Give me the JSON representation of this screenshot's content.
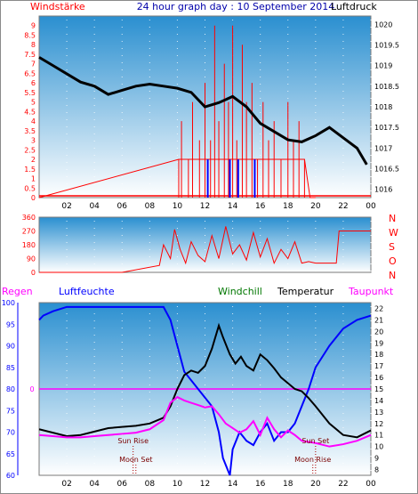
{
  "header": {
    "left": "Windstärke",
    "center": "24 hour graph day : 10 September 2014",
    "right": "Luftdruck"
  },
  "labels": {
    "regen": "Regen",
    "luftfeuchte": "Luftfeuchte",
    "windchill": "Windchill",
    "temperatur": "Temperatur",
    "taupunkt": "Taupunkt",
    "sunrise": "Sun Rise",
    "sunset": "Sun Set",
    "moonset": "Moon Set",
    "moonrise": "Moon Rise"
  },
  "colors": {
    "red": "#ff0000",
    "blue": "#0000ff",
    "green": "#007700",
    "magenta": "#ff00ff",
    "bg_top": "#2a8fd0",
    "bg_bottom": "#ffffff"
  },
  "chart_data": [
    {
      "type": "line",
      "title": "24 hour graph day : 10 September 2014",
      "x_ticks": [
        "02",
        "04",
        "06",
        "08",
        "10",
        "12",
        "14",
        "16",
        "18",
        "20",
        "22",
        "00"
      ],
      "y_left": {
        "label": "Windstärke",
        "ticks": [
          "0",
          "0.5",
          "1",
          "1.5",
          "2",
          "2.5",
          "3",
          "3.5",
          "4",
          "4.5",
          "5",
          "5.5",
          "6",
          "6.5",
          "7",
          "7.5",
          "8",
          "8.5",
          "9"
        ],
        "range": [
          0,
          9.5
        ]
      },
      "y_right": {
        "label": "Luftdruck",
        "ticks": [
          "1016",
          "1016.5",
          "1017",
          "1017.5",
          "1018",
          "1018.5",
          "1019",
          "1019.5",
          "1020"
        ],
        "range": [
          1015.8,
          1020.2
        ]
      },
      "series": [
        {
          "name": "Luftdruck",
          "color": "#000000",
          "x": [
            0,
            1,
            2,
            3,
            4,
            5,
            6,
            7,
            8,
            9,
            10,
            11,
            12,
            13,
            14,
            15,
            16,
            17,
            18,
            19,
            20,
            21,
            22,
            23,
            23.7
          ],
          "values": [
            1019.2,
            1019.0,
            1018.8,
            1018.6,
            1018.5,
            1018.3,
            1018.4,
            1018.5,
            1018.55,
            1018.5,
            1018.45,
            1018.35,
            1018.0,
            1018.1,
            1018.25,
            1018.0,
            1017.6,
            1017.4,
            1017.2,
            1017.15,
            1017.3,
            1017.5,
            1017.25,
            1017.0,
            1016.6
          ]
        },
        {
          "name": "Wind",
          "color": "#ff0000",
          "x": [
            0,
            10.1,
            10.3,
            10.8,
            11.1,
            11.6,
            12.0,
            12.4,
            12.7,
            13.0,
            13.4,
            13.7,
            14.0,
            14.3,
            14.7,
            15.0,
            15.4,
            15.8,
            16.2,
            16.6,
            17.0,
            17.5,
            18.0,
            18.4,
            18.8,
            19.2,
            19.6,
            20
          ],
          "values": [
            0,
            2,
            4,
            2,
            5,
            3,
            6,
            3,
            9,
            4,
            7,
            5,
            9,
            3,
            8,
            5,
            6,
            2,
            5,
            3,
            4,
            2,
            5,
            3,
            4,
            2,
            0,
            0
          ]
        },
        {
          "name": "Böen",
          "color": "#0000ff",
          "x": [
            12.2,
            12.2,
            13.8,
            13.8,
            14.4,
            14.4,
            15.6,
            15.6
          ],
          "values": [
            2,
            0,
            2,
            0,
            2,
            0,
            2,
            0
          ]
        }
      ]
    },
    {
      "type": "line",
      "y_left": {
        "ticks": [
          "0",
          "90",
          "180",
          "270",
          "360"
        ],
        "range": [
          0,
          360
        ]
      },
      "y_right": {
        "ticks": [
          "N",
          "W",
          "S",
          "O",
          "N"
        ]
      },
      "series": [
        {
          "name": "Windrichtung",
          "color": "#ff0000",
          "x": [
            0,
            2.2,
            4,
            6,
            8.7,
            9,
            9.5,
            9.8,
            10.2,
            10.6,
            11,
            11.5,
            12,
            12.5,
            13,
            13.5,
            14,
            14.5,
            15,
            15.5,
            16,
            16.5,
            17,
            17.5,
            18,
            18.5,
            19,
            19.5,
            20,
            21.5,
            21.7,
            23.5,
            24
          ],
          "values": [
            0,
            0,
            0,
            0,
            45,
            180,
            90,
            280,
            150,
            60,
            200,
            110,
            70,
            240,
            90,
            300,
            120,
            180,
            80,
            260,
            100,
            220,
            60,
            150,
            90,
            200,
            60,
            70,
            60,
            60,
            270,
            270,
            270
          ]
        }
      ]
    },
    {
      "type": "line",
      "y_left": {
        "label": "Luftfeuchte",
        "ticks": [
          "60",
          "65",
          "70",
          "75",
          "80",
          "85",
          "90",
          "95",
          "100"
        ],
        "range": [
          60,
          100
        ]
      },
      "y_right": {
        "label": "Temperatur",
        "ticks": [
          "8",
          "9",
          "10",
          "11",
          "12",
          "13",
          "14",
          "15",
          "16",
          "17",
          "18",
          "19",
          "20",
          "21",
          "22"
        ],
        "range": [
          7.5,
          22.5
        ]
      },
      "regen": {
        "label": "Regen",
        "ticks": [
          "0"
        ]
      },
      "events": {
        "sunrise": 6.8,
        "sunset": 20.0,
        "moonset": 7.0,
        "moonrise": 19.8
      },
      "series": [
        {
          "name": "Luftfeuchte",
          "color": "#0000ff",
          "x": [
            0,
            0.3,
            1,
            2,
            3,
            4,
            5,
            6,
            7,
            8,
            9,
            9.5,
            10,
            10.5,
            11,
            11.5,
            12,
            12.5,
            13,
            13.3,
            13.8,
            14,
            14.5,
            15,
            15.5,
            16,
            16.5,
            17,
            17.5,
            18,
            18.5,
            19,
            19.5,
            20,
            21,
            22,
            23,
            24
          ],
          "values": [
            96,
            97,
            98,
            99,
            99,
            99,
            99,
            99,
            99,
            99,
            99,
            96,
            90,
            84,
            82,
            80,
            78,
            76,
            70,
            64,
            60,
            66,
            70,
            68,
            67,
            70,
            72,
            68,
            70,
            70,
            72,
            76,
            80,
            85,
            90,
            94,
            96,
            97
          ]
        },
        {
          "name": "Temperatur",
          "color": "#000000",
          "x": [
            0,
            1,
            2,
            3,
            4,
            5,
            6,
            7,
            8,
            9,
            9.5,
            10,
            10.5,
            11,
            11.5,
            12,
            12.5,
            13,
            13.3,
            13.8,
            14.2,
            14.6,
            15,
            15.5,
            16,
            16.5,
            17,
            17.5,
            18,
            18.5,
            19,
            19.5,
            20,
            21,
            22,
            23,
            24
          ],
          "values": [
            11.5,
            11.2,
            10.9,
            11.0,
            11.3,
            11.6,
            11.7,
            11.8,
            12.0,
            12.5,
            13.5,
            15.0,
            16.2,
            16.6,
            16.4,
            17.0,
            18.5,
            20.5,
            19.5,
            18.0,
            17.2,
            17.8,
            17.0,
            16.6,
            18.0,
            17.5,
            16.8,
            16.0,
            15.5,
            15.0,
            14.8,
            14.2,
            13.5,
            12.0,
            11.0,
            10.8,
            11.4
          ]
        },
        {
          "name": "Taupunkt",
          "color": "#ff00ff",
          "x": [
            0,
            1,
            2,
            3,
            4,
            5,
            6,
            7,
            8,
            9,
            9.5,
            10,
            10.5,
            11,
            11.5,
            12,
            12.5,
            13,
            13.5,
            14,
            14.5,
            15,
            15.5,
            16,
            16.5,
            17,
            17.5,
            18,
            18.5,
            19,
            20,
            21,
            22,
            23,
            24
          ],
          "values": [
            11.0,
            10.9,
            10.8,
            10.8,
            10.9,
            11.0,
            11.1,
            11.2,
            11.5,
            12.3,
            13.8,
            14.3,
            14.0,
            13.8,
            13.6,
            13.4,
            13.5,
            12.8,
            12.0,
            11.6,
            11.2,
            11.5,
            12.2,
            11.0,
            12.5,
            11.5,
            10.8,
            11.4,
            11.0,
            10.5,
            10.3,
            10.0,
            10.2,
            10.5,
            11.0
          ]
        },
        {
          "name": "Windchill",
          "color": "#007700",
          "x": [],
          "values": []
        }
      ]
    }
  ]
}
